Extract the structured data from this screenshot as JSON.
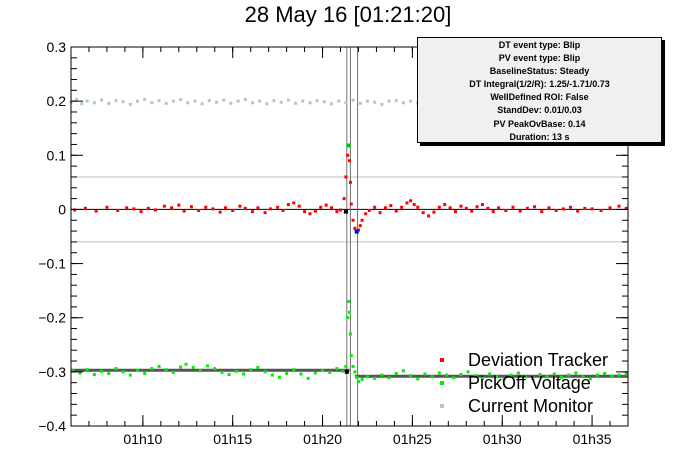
{
  "title": "28 May 16 [01:21:20]",
  "stats_box": {
    "lines": [
      "DT event type: Blip",
      "PV event type: Blip",
      "BaselineStatus: Steady",
      "DT Integral(1/2/R): 1.25/-1.71/0.73",
      "WellDefined ROI: False",
      "StandDev: 0.01/0.03",
      "PV PeakOvBase: 0.14",
      "Duration: 13 s"
    ]
  },
  "chart_data": {
    "type": "scatter",
    "xlabel": "",
    "ylabel": "",
    "x_unit": "minutes after 01h00",
    "xlim": [
      6.0,
      37.0
    ],
    "ylim": [
      -0.4,
      0.3
    ],
    "x_ticks": [
      {
        "value": 10,
        "label": "01h10"
      },
      {
        "value": 15,
        "label": "01h15"
      },
      {
        "value": 20,
        "label": "01h20"
      },
      {
        "value": 25,
        "label": "01h25"
      },
      {
        "value": 30,
        "label": "01h30"
      },
      {
        "value": 35,
        "label": "01h35"
      }
    ],
    "y_ticks": [
      {
        "value": 0.3,
        "label": "0.3"
      },
      {
        "value": 0.2,
        "label": "0.2"
      },
      {
        "value": 0.1,
        "label": "0.1"
      },
      {
        "value": 0.0,
        "label": "0"
      },
      {
        "value": -0.1,
        "label": "−0.1"
      },
      {
        "value": -0.2,
        "label": "−0.2"
      },
      {
        "value": -0.3,
        "label": "−0.3"
      },
      {
        "value": -0.4,
        "label": "−0.4"
      }
    ],
    "horizontal_lines": [
      {
        "y": 0.06,
        "color": "#c0c0c0"
      },
      {
        "y": -0.06,
        "color": "#c0c0c0"
      },
      {
        "y": 0.0,
        "color": "#000000"
      }
    ],
    "vertical_lines": [
      {
        "x": 21.35,
        "color": "#707070"
      },
      {
        "x": 21.55,
        "color": "#707070"
      },
      {
        "x": 21.95,
        "color": "#707070"
      }
    ],
    "baselines": [
      {
        "x_start": 6.0,
        "x_end": 21.5,
        "y": -0.297,
        "color": "#555555"
      },
      {
        "x_start": 21.8,
        "x_end": 37.0,
        "y": -0.308,
        "color": "#555555"
      }
    ],
    "series": [
      {
        "name": "Deviation Tracker",
        "color": "#ff0000",
        "points": [
          [
            6.2,
            -0.001
          ],
          [
            6.8,
            0.002
          ],
          [
            7.4,
            -0.003
          ],
          [
            8.0,
            0.004
          ],
          [
            8.6,
            -0.002
          ],
          [
            9.1,
            0.003
          ],
          [
            9.5,
            0.001
          ],
          [
            9.9,
            -0.004
          ],
          [
            10.3,
            0.002
          ],
          [
            10.7,
            -0.001
          ],
          [
            11.2,
            0.006
          ],
          [
            11.6,
            0.003
          ],
          [
            12.0,
            0.008
          ],
          [
            12.3,
            -0.003
          ],
          [
            12.7,
            0.005
          ],
          [
            13.1,
            -0.002
          ],
          [
            13.5,
            0.004
          ],
          [
            13.9,
            0.001
          ],
          [
            14.3,
            -0.005
          ],
          [
            14.6,
            0.003
          ],
          [
            15.0,
            -0.002
          ],
          [
            15.4,
            0.006
          ],
          [
            15.7,
            0.002
          ],
          [
            16.1,
            -0.004
          ],
          [
            16.4,
            0.003
          ],
          [
            16.8,
            -0.006
          ],
          [
            17.1,
            0.001
          ],
          [
            17.5,
            0.004
          ],
          [
            17.8,
            -0.002
          ],
          [
            18.1,
            0.009
          ],
          [
            18.4,
            0.012
          ],
          [
            18.7,
            0.006
          ],
          [
            19.0,
            -0.004
          ],
          [
            19.3,
            -0.008
          ],
          [
            19.6,
            -0.003
          ],
          [
            19.9,
            0.004
          ],
          [
            20.2,
            0.008
          ],
          [
            20.5,
            0.003
          ],
          [
            20.8,
            -0.004
          ],
          [
            21.0,
            -0.001
          ],
          [
            21.2,
            0.02
          ],
          [
            21.3,
            0.06
          ],
          [
            21.4,
            0.1
          ],
          [
            21.45,
            0.118
          ],
          [
            21.5,
            0.09
          ],
          [
            21.55,
            0.05
          ],
          [
            21.6,
            0.01
          ],
          [
            21.7,
            -0.02
          ],
          [
            21.8,
            -0.035
          ],
          [
            21.9,
            -0.041
          ],
          [
            22.0,
            -0.038
          ],
          [
            22.1,
            -0.03
          ],
          [
            22.2,
            -0.02
          ],
          [
            22.4,
            -0.008
          ],
          [
            22.6,
            -0.002
          ],
          [
            22.9,
            0.004
          ],
          [
            23.2,
            -0.006
          ],
          [
            23.5,
            0.003
          ],
          [
            23.8,
            0.007
          ],
          [
            24.1,
            -0.003
          ],
          [
            24.4,
            0.004
          ],
          [
            24.7,
            0.012
          ],
          [
            24.9,
            0.016
          ],
          [
            25.1,
            0.009
          ],
          [
            25.3,
            0.004
          ],
          [
            25.6,
            -0.006
          ],
          [
            25.9,
            -0.012
          ],
          [
            26.2,
            -0.005
          ],
          [
            26.5,
            0.004
          ],
          [
            26.8,
            0.009
          ],
          [
            27.1,
            0.003
          ],
          [
            27.4,
            -0.004
          ],
          [
            27.7,
            0.006
          ],
          [
            28.0,
            0.002
          ],
          [
            28.3,
            -0.003
          ],
          [
            28.6,
            0.005
          ],
          [
            28.9,
            0.009
          ],
          [
            29.2,
            0.002
          ],
          [
            29.5,
            -0.004
          ],
          [
            29.8,
            0.003
          ],
          [
            30.2,
            -0.002
          ],
          [
            30.6,
            0.004
          ],
          [
            31.0,
            -0.003
          ],
          [
            31.4,
            0.002
          ],
          [
            31.8,
            0.005
          ],
          [
            32.2,
            -0.004
          ],
          [
            32.6,
            0.003
          ],
          [
            33.0,
            -0.002
          ],
          [
            33.4,
            0.001
          ],
          [
            33.8,
            0.004
          ],
          [
            34.2,
            -0.003
          ],
          [
            34.6,
            0.002
          ],
          [
            35.0,
            0.001
          ],
          [
            35.5,
            -0.002
          ],
          [
            36.0,
            0.003
          ],
          [
            36.5,
            0.006
          ],
          [
            36.9,
            0.002
          ]
        ]
      },
      {
        "name": "PickOff Voltage",
        "color": "#00ee00",
        "points": [
          [
            6.1,
            -0.298
          ],
          [
            6.5,
            -0.302
          ],
          [
            6.9,
            -0.296
          ],
          [
            7.3,
            -0.305
          ],
          [
            7.7,
            -0.299
          ],
          [
            8.1,
            -0.303
          ],
          [
            8.5,
            -0.294
          ],
          [
            8.9,
            -0.3
          ],
          [
            9.3,
            -0.306
          ],
          [
            9.7,
            -0.297
          ],
          [
            10.1,
            -0.303
          ],
          [
            10.5,
            -0.294
          ],
          [
            10.9,
            -0.29
          ],
          [
            11.3,
            -0.296
          ],
          [
            11.7,
            -0.301
          ],
          [
            12.1,
            -0.291
          ],
          [
            12.4,
            -0.286
          ],
          [
            12.8,
            -0.292
          ],
          [
            13.2,
            -0.298
          ],
          [
            13.6,
            -0.289
          ],
          [
            14.0,
            -0.294
          ],
          [
            14.4,
            -0.301
          ],
          [
            14.8,
            -0.305
          ],
          [
            15.2,
            -0.299
          ],
          [
            15.6,
            -0.304
          ],
          [
            16.0,
            -0.296
          ],
          [
            16.4,
            -0.292
          ],
          [
            16.8,
            -0.3
          ],
          [
            17.2,
            -0.306
          ],
          [
            17.6,
            -0.31
          ],
          [
            18.0,
            -0.303
          ],
          [
            18.4,
            -0.296
          ],
          [
            18.8,
            -0.304
          ],
          [
            19.2,
            -0.312
          ],
          [
            19.6,
            -0.302
          ],
          [
            20.0,
            -0.297
          ],
          [
            20.4,
            -0.301
          ],
          [
            20.8,
            -0.294
          ],
          [
            21.1,
            -0.299
          ],
          [
            21.3,
            -0.29
          ],
          [
            21.4,
            -0.2
          ],
          [
            21.45,
            -0.17
          ],
          [
            21.5,
            -0.19
          ],
          [
            21.55,
            -0.23
          ],
          [
            21.6,
            -0.27
          ],
          [
            21.7,
            -0.29
          ],
          [
            21.8,
            -0.3
          ],
          [
            21.9,
            -0.31
          ],
          [
            22.0,
            -0.318
          ],
          [
            22.2,
            -0.314
          ],
          [
            22.5,
            -0.309
          ],
          [
            22.9,
            -0.312
          ],
          [
            23.3,
            -0.306
          ],
          [
            23.7,
            -0.311
          ],
          [
            24.1,
            -0.303
          ],
          [
            24.5,
            -0.298
          ],
          [
            24.9,
            -0.307
          ],
          [
            25.3,
            -0.313
          ],
          [
            25.7,
            -0.304
          ],
          [
            26.1,
            -0.309
          ],
          [
            26.5,
            -0.302
          ],
          [
            26.9,
            -0.306
          ],
          [
            27.3,
            -0.311
          ],
          [
            27.7,
            -0.305
          ],
          [
            28.1,
            -0.3
          ],
          [
            28.5,
            -0.307
          ],
          [
            28.9,
            -0.312
          ],
          [
            29.3,
            -0.304
          ],
          [
            29.7,
            -0.309
          ],
          [
            30.1,
            -0.313
          ],
          [
            30.5,
            -0.306
          ],
          [
            30.9,
            -0.302
          ],
          [
            31.3,
            -0.309
          ],
          [
            31.7,
            -0.312
          ],
          [
            32.1,
            -0.305
          ],
          [
            32.5,
            -0.309
          ],
          [
            32.9,
            -0.304
          ],
          [
            33.3,
            -0.31
          ],
          [
            33.7,
            -0.306
          ],
          [
            34.1,
            -0.302
          ],
          [
            34.5,
            -0.309
          ],
          [
            34.9,
            -0.313
          ],
          [
            35.3,
            -0.306
          ],
          [
            35.7,
            -0.303
          ],
          [
            36.1,
            -0.308
          ],
          [
            36.5,
            -0.306
          ],
          [
            36.9,
            -0.304
          ]
        ]
      },
      {
        "name": "Current Monitor",
        "color": "#b0c8c0",
        "points": [
          [
            6.0,
            0.198
          ],
          [
            6.3,
            0.203
          ],
          [
            6.6,
            0.195
          ],
          [
            6.9,
            0.2
          ],
          [
            7.3,
            0.197
          ],
          [
            7.7,
            0.202
          ],
          [
            8.1,
            0.196
          ],
          [
            8.5,
            0.201
          ],
          [
            8.9,
            0.199
          ],
          [
            9.3,
            0.194
          ],
          [
            9.7,
            0.2
          ],
          [
            10.1,
            0.203
          ],
          [
            10.5,
            0.197
          ],
          [
            10.9,
            0.201
          ],
          [
            11.3,
            0.196
          ],
          [
            11.7,
            0.2
          ],
          [
            12.1,
            0.203
          ],
          [
            12.5,
            0.197
          ],
          [
            12.9,
            0.2
          ],
          [
            13.3,
            0.195
          ],
          [
            13.7,
            0.201
          ],
          [
            14.1,
            0.198
          ],
          [
            14.5,
            0.202
          ],
          [
            14.9,
            0.196
          ],
          [
            15.3,
            0.2
          ],
          [
            15.7,
            0.203
          ],
          [
            16.1,
            0.197
          ],
          [
            16.5,
            0.2
          ],
          [
            16.9,
            0.195
          ],
          [
            17.3,
            0.201
          ],
          [
            17.7,
            0.198
          ],
          [
            18.1,
            0.202
          ],
          [
            18.5,
            0.196
          ],
          [
            18.9,
            0.2
          ],
          [
            19.3,
            0.197
          ],
          [
            19.7,
            0.201
          ],
          [
            20.1,
            0.199
          ],
          [
            20.5,
            0.195
          ],
          [
            20.9,
            0.2
          ],
          [
            21.3,
            0.197
          ],
          [
            21.7,
            0.202
          ],
          [
            22.1,
            0.196
          ],
          [
            22.5,
            0.2
          ],
          [
            22.9,
            0.198
          ],
          [
            23.3,
            0.194
          ],
          [
            23.7,
            0.2
          ],
          [
            24.1,
            0.201
          ],
          [
            24.5,
            0.197
          ],
          [
            24.9,
            0.2
          ],
          [
            25.3,
            0.196
          ],
          [
            25.6,
            0.199
          ]
        ]
      }
    ],
    "markers": [
      {
        "x": 21.45,
        "y": 0.118,
        "color": "#00cc00"
      },
      {
        "x": 21.9,
        "y": -0.041,
        "color": "#0000cc"
      },
      {
        "x": 21.3,
        "y": -0.004,
        "color": "#000000"
      },
      {
        "x": 21.35,
        "y": -0.3,
        "color": "#000000"
      }
    ],
    "legend_position": "bottom-right",
    "grid": false
  }
}
